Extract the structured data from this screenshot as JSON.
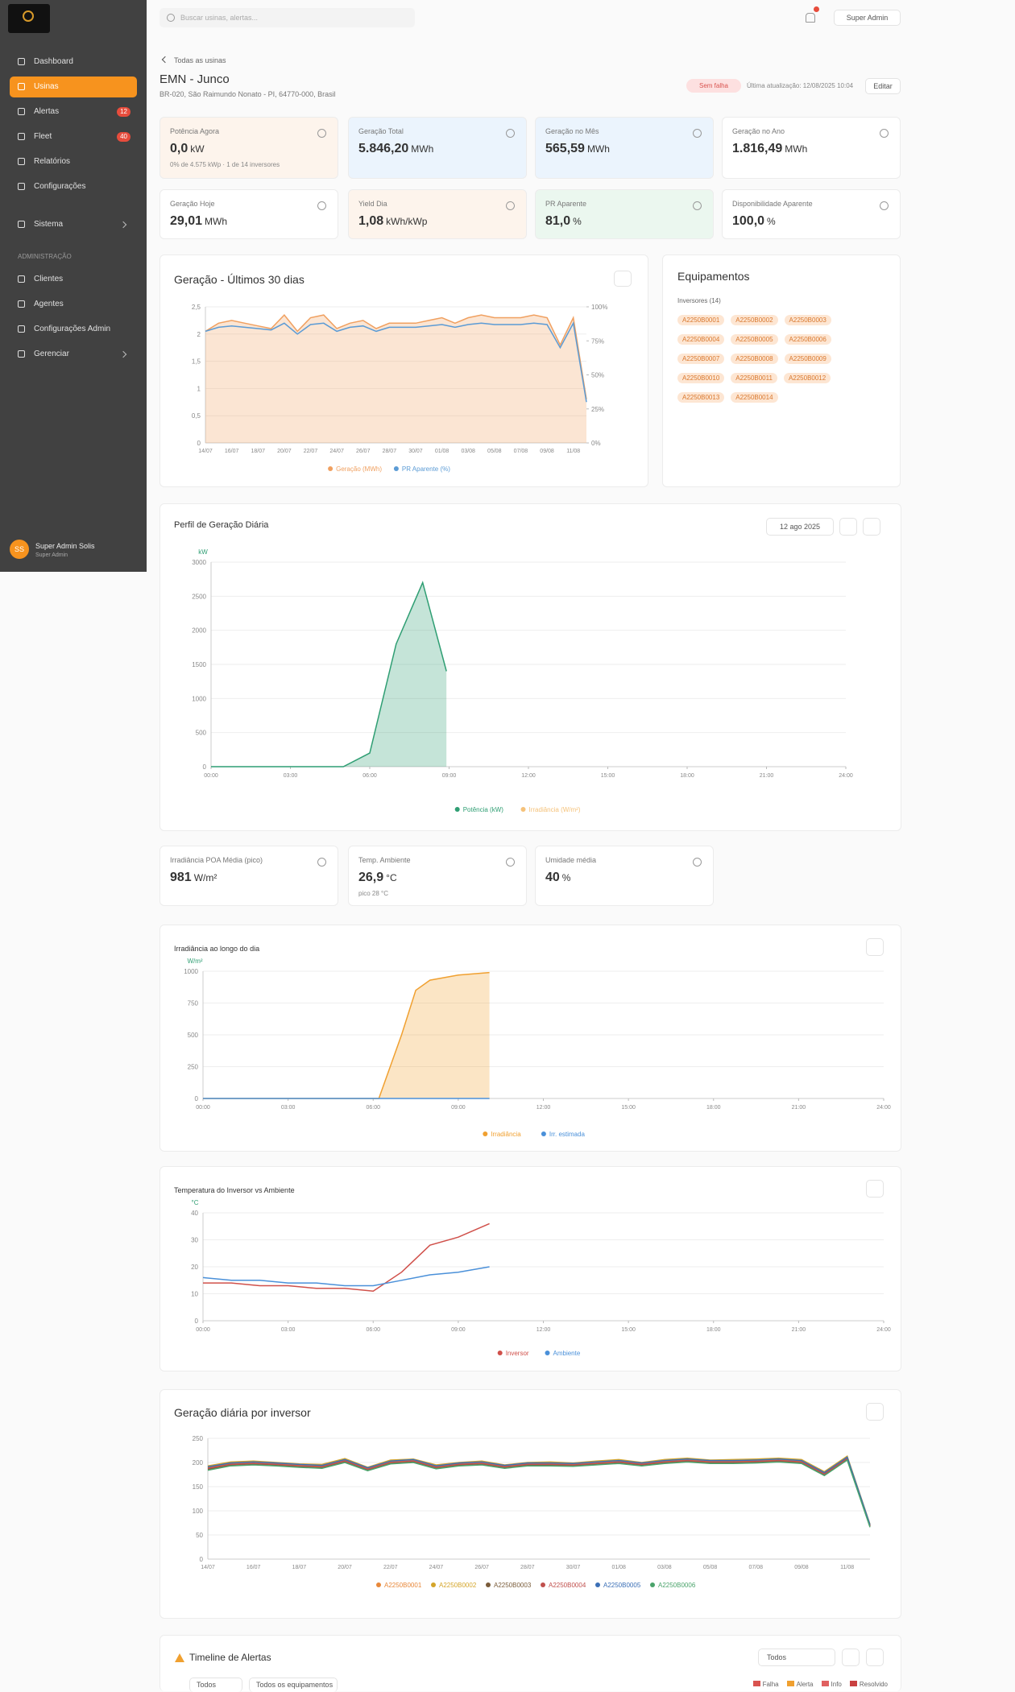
{
  "header": {
    "search": "Buscar usinas, alertas...",
    "user_button": "Super Admin"
  },
  "sidebar": {
    "nav": [
      {
        "label": "Dashboard"
      },
      {
        "label": "Usinas",
        "active": true
      },
      {
        "label": "Alertas",
        "badge": 12
      },
      {
        "label": "Fleet",
        "badge": 40
      },
      {
        "label": "Relatórios"
      },
      {
        "label": "Configurações"
      }
    ],
    "system": "Sistema",
    "admin_label": "ADMINISTRAÇÃO",
    "admin_nav": [
      "Clientes",
      "Agentes",
      "Configurações Admin",
      "Gerenciar"
    ],
    "user": {
      "initials": "SS",
      "name": "Super Admin Solis",
      "role": "Super Admin"
    }
  },
  "plant": {
    "breadcrumb": "Todas as usinas",
    "title": "EMN - Junco",
    "address": "BR-020, São Raimundo Nonato - PI, 64770-000, Brasil",
    "status": "Sem falha",
    "updated": "Última atualização: 12/08/2025 10:04",
    "edit": "Editar"
  },
  "kpis": [
    {
      "label": "Potência Agora",
      "value": "0,0",
      "unit": "kW",
      "sub": "0% de 4.575 kWp · 1 de 14 inversores"
    },
    {
      "label": "Geração Total",
      "value": "5.846,20",
      "unit": "MWh"
    },
    {
      "label": "Geração no Mês",
      "value": "565,59",
      "unit": "MWh"
    },
    {
      "label": "Geração no Ano",
      "value": "1.816,49",
      "unit": "MWh"
    },
    {
      "label": "Geração Hoje",
      "value": "29,01",
      "unit": "MWh"
    },
    {
      "label": "Yield Dia",
      "value": "1,08",
      "unit": "kWh/kWp"
    },
    {
      "label": "PR Aparente",
      "value": "81,0",
      "unit": "%"
    },
    {
      "label": "Disponibilidade Aparente",
      "value": "100,0",
      "unit": "%"
    }
  ],
  "equipment": {
    "title": "Equipamentos",
    "filter": "Inversores (14)",
    "tags": [
      "A2250B0001",
      "A2250B0002",
      "A2250B0003",
      "A2250B0004",
      "A2250B0005",
      "A2250B0006",
      "A2250B0007",
      "A2250B0008",
      "A2250B0009",
      "A2250B0010",
      "A2250B0011",
      "A2250B0012",
      "A2250B0013",
      "A2250B0014"
    ]
  },
  "daily_date": "12 ago 2025",
  "weather": [
    {
      "label": "Irradiância POA Média (pico)",
      "value": "981",
      "unit": "W/m²"
    },
    {
      "label": "Temp. Ambiente",
      "value": "26,9",
      "unit": "°C",
      "sub": "pico 28 °C"
    },
    {
      "label": "Umidade média",
      "value": "40",
      "unit": "%"
    }
  ],
  "chart_data": [
    {
      "type": "area",
      "title": "Geração - Últimos 30 dias",
      "categories": [
        "14/07",
        null,
        "16/07",
        null,
        "18/07",
        null,
        "20/07",
        null,
        "22/07",
        null,
        "24/07",
        null,
        "26/07",
        null,
        "28/07",
        null,
        "30/07",
        null,
        "01/08",
        null,
        "03/08",
        null,
        "05/08",
        null,
        "07/08",
        null,
        "09/08",
        null,
        "11/08",
        null
      ],
      "series": [
        {
          "name": "Geração (MWh)",
          "color": "#f0a060",
          "area": true,
          "values": [
            2.05,
            2.2,
            2.25,
            2.2,
            2.15,
            2.1,
            2.35,
            2.05,
            2.3,
            2.35,
            2.1,
            2.2,
            2.25,
            2.1,
            2.2,
            2.2,
            2.2,
            2.25,
            2.3,
            2.2,
            2.3,
            2.35,
            2.3,
            2.3,
            2.3,
            2.35,
            2.3,
            1.8,
            2.3,
            0.8
          ]
        },
        {
          "name": "PR Aparente (%)",
          "color": "#5b9bd5",
          "axis": "y2",
          "values": [
            82,
            85,
            86,
            85,
            84,
            83,
            88,
            80,
            87,
            88,
            82,
            85,
            86,
            82,
            85,
            85,
            85,
            86,
            87,
            85,
            87,
            88,
            87,
            87,
            87,
            88,
            87,
            70,
            88,
            30
          ]
        }
      ],
      "ylim": [
        0,
        2.5
      ],
      "yticks": [
        0,
        {
          "value": 0.5,
          "label": "0,5"
        },
        1,
        {
          "value": 1.5,
          "label": "1,5"
        },
        2,
        {
          "value": 2.5,
          "label": "2,5"
        }
      ],
      "y2lim": [
        0,
        100
      ],
      "y2ticks": [
        {
          "value": 0,
          "label": "0%"
        },
        {
          "value": 25,
          "label": "25%"
        },
        {
          "value": 50,
          "label": "50%"
        },
        {
          "value": 75,
          "label": "75%"
        },
        {
          "value": 100,
          "label": "100%"
        }
      ],
      "grid": true,
      "legend": "bottom"
    },
    {
      "type": "area",
      "title": "Perfil de Geração Diária",
      "y_label": "kW",
      "x": [
        0,
        1,
        2,
        3,
        4,
        5,
        6,
        7,
        8,
        8.9
      ],
      "xlim": [
        0,
        24
      ],
      "xticks": [
        {
          "value": 0,
          "label": "00:00"
        },
        {
          "value": 3,
          "label": "03:00"
        },
        {
          "value": 6,
          "label": "06:00"
        },
        {
          "value": 9,
          "label": "09:00"
        },
        {
          "value": 12,
          "label": "12:00"
        },
        {
          "value": 15,
          "label": "15:00"
        },
        {
          "value": 18,
          "label": "18:00"
        },
        {
          "value": 21,
          "label": "21:00"
        },
        {
          "value": 24,
          "label": "24:00"
        }
      ],
      "series": [
        {
          "name": "Potência (kW)",
          "color": "#2f9e73",
          "area": true,
          "values": [
            0,
            0,
            0,
            0,
            0,
            0,
            200,
            1800,
            2700,
            1400
          ]
        },
        {
          "name": "Irradiância (W/m²)",
          "color": "#f5c27a",
          "values": [
            null,
            null,
            null,
            null,
            null,
            null,
            null,
            null,
            null,
            null
          ]
        }
      ],
      "ylim": [
        0,
        3000
      ],
      "yticks": [
        0,
        500,
        1000,
        1500,
        2000,
        2500,
        3000
      ],
      "grid": true,
      "legend": "bottom"
    },
    {
      "type": "area",
      "title": "Irradiância ao longo do dia",
      "y_label": "W/m²",
      "x": [
        0,
        2,
        4,
        6,
        6.2,
        7,
        7.5,
        8,
        9,
        10.1
      ],
      "xlim": [
        0,
        24
      ],
      "xticks": [
        {
          "value": 0,
          "label": "00:00"
        },
        {
          "value": 3,
          "label": "03:00"
        },
        {
          "value": 6,
          "label": "06:00"
        },
        {
          "value": 9,
          "label": "09:00"
        },
        {
          "value": 12,
          "label": "12:00"
        },
        {
          "value": 15,
          "label": "15:00"
        },
        {
          "value": 18,
          "label": "18:00"
        },
        {
          "value": 21,
          "label": "21:00"
        },
        {
          "value": 24,
          "label": "24:00"
        }
      ],
      "series": [
        {
          "name": "Irradiância",
          "color": "#f0a030",
          "area": true,
          "values": [
            0,
            0,
            0,
            0,
            0,
            500,
            850,
            930,
            970,
            990
          ]
        },
        {
          "name": "Irr. estimada",
          "color": "#4a90d9",
          "values": [
            0,
            0,
            0,
            0,
            0,
            0,
            0,
            0,
            0,
            0
          ]
        }
      ],
      "ylim": [
        0,
        1000
      ],
      "yticks": [
        0,
        250,
        500,
        750,
        1000
      ],
      "grid": true,
      "legend": "bottom"
    },
    {
      "type": "line",
      "title": "Temperatura do Inversor vs Ambiente",
      "y_label": "°C",
      "x": [
        0,
        1,
        2,
        3,
        4,
        5,
        6,
        7,
        8,
        9,
        10.1
      ],
      "xlim": [
        0,
        24
      ],
      "xticks": [
        {
          "value": 0,
          "label": "00:00"
        },
        {
          "value": 3,
          "label": "03:00"
        },
        {
          "value": 6,
          "label": "06:00"
        },
        {
          "value": 9,
          "label": "09:00"
        },
        {
          "value": 12,
          "label": "12:00"
        },
        {
          "value": 15,
          "label": "15:00"
        },
        {
          "value": 18,
          "label": "18:00"
        },
        {
          "value": 21,
          "label": "21:00"
        },
        {
          "value": 24,
          "label": "24:00"
        }
      ],
      "series": [
        {
          "name": "Inversor",
          "color": "#d0504a",
          "values": [
            14,
            14,
            13,
            13,
            12,
            12,
            11,
            18,
            28,
            31,
            36
          ]
        },
        {
          "name": "Ambiente",
          "color": "#4a90d9",
          "values": [
            16,
            15,
            15,
            14,
            14,
            13,
            13,
            15,
            17,
            18,
            20
          ]
        }
      ],
      "ylim": [
        0,
        40
      ],
      "yticks": [
        0,
        10,
        20,
        30,
        40
      ],
      "grid": true,
      "legend": "bottom"
    },
    {
      "type": "line",
      "title": "Geração diária por inversor",
      "categories": [
        "14/07",
        null,
        "16/07",
        null,
        "18/07",
        null,
        "20/07",
        null,
        "22/07",
        null,
        "24/07",
        null,
        "26/07",
        null,
        "28/07",
        null,
        "30/07",
        null,
        "01/08",
        null,
        "03/08",
        null,
        "05/08",
        null,
        "07/08",
        null,
        "09/08",
        null,
        "11/08",
        null
      ],
      "series": [
        {
          "name": "A2250B0001",
          "color": "#e8883a",
          "values": [
            190,
            198,
            200,
            198,
            195,
            193,
            205,
            188,
            202,
            205,
            192,
            198,
            200,
            193,
            198,
            198,
            197,
            200,
            203,
            198,
            203,
            206,
            203,
            203,
            204,
            206,
            203,
            178,
            210,
            70
          ]
        },
        {
          "name": "A2250B0002",
          "color": "#d4a52a",
          "values": [
            193,
            201,
            203,
            200,
            197,
            196,
            208,
            190,
            205,
            207,
            195,
            200,
            203,
            195,
            200,
            201,
            199,
            203,
            206,
            200,
            206,
            209,
            205,
            206,
            207,
            209,
            206,
            181,
            213,
            72
          ]
        },
        {
          "name": "A2250B0003",
          "color": "#7a5c3a",
          "values": [
            186,
            195,
            197,
            195,
            192,
            190,
            202,
            185,
            199,
            202,
            189,
            195,
            197,
            190,
            195,
            195,
            194,
            197,
            200,
            195,
            200,
            203,
            200,
            200,
            201,
            203,
            200,
            175,
            207,
            68
          ]
        },
        {
          "name": "A2250B0004",
          "color": "#c0504d",
          "values": [
            188,
            196,
            198,
            196,
            193,
            191,
            203,
            186,
            200,
            203,
            190,
            196,
            198,
            191,
            196,
            196,
            195,
            198,
            201,
            196,
            201,
            204,
            201,
            201,
            202,
            204,
            201,
            176,
            208,
            69
          ]
        },
        {
          "name": "A2250B0005",
          "color": "#3b6fb6",
          "values": [
            191,
            199,
            201,
            199,
            196,
            194,
            206,
            189,
            203,
            206,
            193,
            199,
            201,
            194,
            199,
            199,
            198,
            201,
            204,
            199,
            204,
            207,
            204,
            204,
            205,
            207,
            204,
            179,
            211,
            71
          ]
        },
        {
          "name": "A2250B0006",
          "color": "#4aa36b",
          "values": [
            184,
            193,
            195,
            193,
            190,
            188,
            200,
            183,
            197,
            200,
            187,
            193,
            195,
            188,
            193,
            193,
            192,
            195,
            198,
            193,
            198,
            201,
            198,
            198,
            199,
            201,
            198,
            173,
            205,
            66
          ]
        }
      ],
      "ylim": [
        0,
        250
      ],
      "yticks": [
        0,
        50,
        100,
        150,
        200,
        250
      ],
      "grid": true,
      "legend": "bottom"
    }
  ],
  "alerts": {
    "title": "Timeline de Alertas",
    "period": "Todos",
    "filters": [
      "Todos",
      "Todos os equipamentos"
    ],
    "legend": [
      "Falha",
      "Alerta",
      "Info",
      "Resolvido"
    ]
  }
}
